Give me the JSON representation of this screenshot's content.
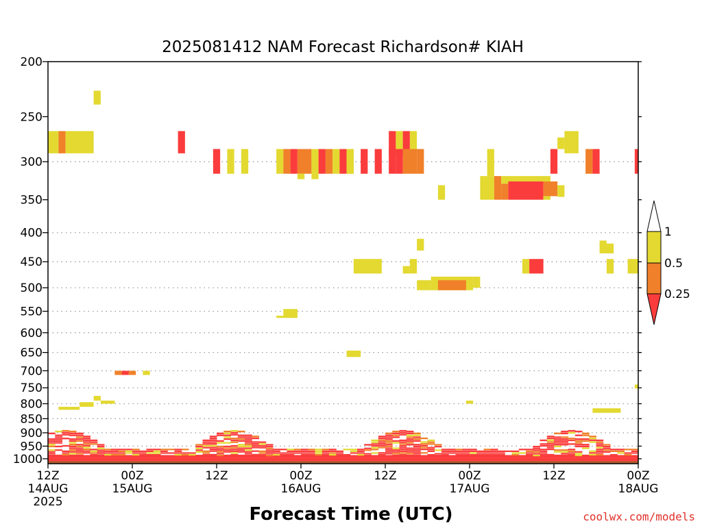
{
  "chart_data": {
    "type": "heatmap",
    "title": "2025081412 NAM Forecast Richardson# KIAH",
    "xlabel": "Forecast Time (UTC)",
    "ylabel": "",
    "x_ticks": [
      {
        "hour": 0,
        "line1": "12Z",
        "line2": "14AUG",
        "line3": "2025"
      },
      {
        "hour": 12,
        "line1": "00Z",
        "line2": "15AUG",
        "line3": ""
      },
      {
        "hour": 24,
        "line1": "12Z",
        "line2": "",
        "line3": ""
      },
      {
        "hour": 36,
        "line1": "00Z",
        "line2": "16AUG",
        "line3": ""
      },
      {
        "hour": 48,
        "line1": "12Z",
        "line2": "",
        "line3": ""
      },
      {
        "hour": 60,
        "line1": "00Z",
        "line2": "17AUG",
        "line3": ""
      },
      {
        "hour": 72,
        "line1": "12Z",
        "line2": "",
        "line3": ""
      },
      {
        "hour": 84,
        "line1": "00Z",
        "line2": "18AUG",
        "line3": ""
      }
    ],
    "xlim": [
      0,
      84
    ],
    "y_axis": "pressure (mb), log scale, inverted",
    "ylim": [
      1020,
      200
    ],
    "y_ticks": [
      200,
      250,
      300,
      350,
      400,
      450,
      500,
      550,
      600,
      650,
      700,
      750,
      800,
      850,
      900,
      950,
      1000
    ],
    "y_gridlines": [
      300,
      400,
      450,
      500,
      550,
      600,
      650,
      700,
      750,
      800,
      850,
      900,
      950,
      1000
    ],
    "grid": "dotted horizontal",
    "legend": {
      "placement": "right",
      "labels": [
        "1",
        "0.5",
        "0.25"
      ],
      "bins": [
        {
          "range": "> 1",
          "color": "#ffffff"
        },
        {
          "range": "0.5 - 1",
          "color": "#e3d931"
        },
        {
          "range": "0.25 - 0.5",
          "color": "#f0802a"
        },
        {
          "range": "< 0.25",
          "color": "#fb3c3c"
        }
      ]
    },
    "colors": {
      "low": "#fb3c3c",
      "mid": "#f0802a",
      "high": "#e3d931",
      "surface": "#a85a2c"
    },
    "cells": [
      {
        "t": 0,
        "t2": 1.5,
        "p1": 265,
        "p2": 290,
        "c": "high"
      },
      {
        "t": 1.5,
        "t2": 2.5,
        "p1": 265,
        "p2": 290,
        "c": "mid"
      },
      {
        "t": 2.5,
        "t2": 6.5,
        "p1": 265,
        "p2": 290,
        "c": "high"
      },
      {
        "t": 6.5,
        "t2": 7.5,
        "p1": 225,
        "p2": 238,
        "c": "high"
      },
      {
        "t": 18.5,
        "t2": 19.5,
        "p1": 265,
        "p2": 290,
        "c": "low"
      },
      {
        "t": 23.5,
        "t2": 24.5,
        "p1": 285,
        "p2": 315,
        "c": "low"
      },
      {
        "t": 25.5,
        "t2": 26.5,
        "p1": 285,
        "p2": 315,
        "c": "high"
      },
      {
        "t": 27.5,
        "t2": 28.5,
        "p1": 285,
        "p2": 315,
        "c": "high"
      },
      {
        "t": 32.5,
        "t2": 33.5,
        "p1": 285,
        "p2": 315,
        "c": "high"
      },
      {
        "t": 33.5,
        "t2": 34.5,
        "p1": 285,
        "p2": 315,
        "c": "mid"
      },
      {
        "t": 34.5,
        "t2": 35.5,
        "p1": 285,
        "p2": 315,
        "c": "low"
      },
      {
        "t": 35.5,
        "t2": 37.5,
        "p1": 285,
        "p2": 315,
        "c": "mid"
      },
      {
        "t": 37.5,
        "t2": 38.5,
        "p1": 285,
        "p2": 315,
        "c": "high"
      },
      {
        "t": 38.5,
        "t2": 39.5,
        "p1": 285,
        "p2": 315,
        "c": "low"
      },
      {
        "t": 39.5,
        "t2": 40.5,
        "p1": 285,
        "p2": 315,
        "c": "mid"
      },
      {
        "t": 40.5,
        "t2": 41.5,
        "p1": 285,
        "p2": 315,
        "c": "high"
      },
      {
        "t": 41.5,
        "t2": 42.5,
        "p1": 285,
        "p2": 315,
        "c": "low"
      },
      {
        "t": 42.5,
        "t2": 43.5,
        "p1": 285,
        "p2": 315,
        "c": "high"
      },
      {
        "t": 35.5,
        "t2": 36.5,
        "p1": 315,
        "p2": 322,
        "c": "high"
      },
      {
        "t": 37.5,
        "t2": 38.5,
        "p1": 315,
        "p2": 322,
        "c": "high"
      },
      {
        "t": 42.5,
        "t2": 43.5,
        "p1": 285,
        "p2": 315,
        "c": "high"
      },
      {
        "t": 44.5,
        "t2": 45.5,
        "p1": 285,
        "p2": 315,
        "c": "low"
      },
      {
        "t": 46.5,
        "t2": 47.5,
        "p1": 285,
        "p2": 315,
        "c": "low"
      },
      {
        "t": 48.5,
        "t2": 49.5,
        "p1": 265,
        "p2": 292,
        "c": "low"
      },
      {
        "t": 49.5,
        "t2": 50.5,
        "p1": 265,
        "p2": 292,
        "c": "high"
      },
      {
        "t": 50.5,
        "t2": 51.5,
        "p1": 265,
        "p2": 292,
        "c": "low"
      },
      {
        "t": 51.5,
        "t2": 52.5,
        "p1": 265,
        "p2": 292,
        "c": "high"
      },
      {
        "t": 48.5,
        "t2": 49.5,
        "p1": 285,
        "p2": 315,
        "c": "low"
      },
      {
        "t": 49.5,
        "t2": 50.5,
        "p1": 285,
        "p2": 315,
        "c": "low"
      },
      {
        "t": 50.5,
        "t2": 52.5,
        "p1": 285,
        "p2": 315,
        "c": "mid"
      },
      {
        "t": 52.5,
        "t2": 53.5,
        "p1": 285,
        "p2": 315,
        "c": "mid"
      },
      {
        "t": 55.5,
        "t2": 56.5,
        "p1": 330,
        "p2": 350,
        "c": "high"
      },
      {
        "t": 62.5,
        "t2": 63.5,
        "p1": 285,
        "p2": 318,
        "c": "high"
      },
      {
        "t": 61.5,
        "t2": 63.5,
        "p1": 318,
        "p2": 350,
        "c": "high"
      },
      {
        "t": 63.5,
        "t2": 64.5,
        "p1": 318,
        "p2": 350,
        "c": "mid"
      },
      {
        "t": 64.5,
        "t2": 71.5,
        "p1": 318,
        "p2": 328,
        "c": "high"
      },
      {
        "t": 64.5,
        "t2": 65.5,
        "p1": 328,
        "p2": 350,
        "c": "mid"
      },
      {
        "t": 65.5,
        "t2": 70.5,
        "p1": 325,
        "p2": 350,
        "c": "low"
      },
      {
        "t": 70.5,
        "t2": 72.5,
        "p1": 325,
        "p2": 345,
        "c": "mid"
      },
      {
        "t": 70.5,
        "t2": 71.5,
        "p1": 345,
        "p2": 350,
        "c": "high"
      },
      {
        "t": 72.5,
        "t2": 73.5,
        "p1": 330,
        "p2": 346,
        "c": "high"
      },
      {
        "t": 71.5,
        "t2": 72.5,
        "p1": 285,
        "p2": 315,
        "c": "low"
      },
      {
        "t": 73.5,
        "t2": 75.5,
        "p1": 265,
        "p2": 290,
        "c": "high"
      },
      {
        "t": 72.5,
        "t2": 73.5,
        "p1": 272,
        "p2": 285,
        "c": "high"
      },
      {
        "t": 76.5,
        "t2": 77.5,
        "p1": 285,
        "p2": 315,
        "c": "mid"
      },
      {
        "t": 77.5,
        "t2": 78.5,
        "p1": 285,
        "p2": 315,
        "c": "low"
      },
      {
        "t": 83.5,
        "t2": 84,
        "p1": 285,
        "p2": 315,
        "c": "low"
      },
      {
        "t": 52.5,
        "t2": 53.5,
        "p1": 410,
        "p2": 430,
        "c": "high"
      },
      {
        "t": 78.5,
        "t2": 80.5,
        "p1": 418,
        "p2": 435,
        "c": "high"
      },
      {
        "t": 78.5,
        "t2": 79.5,
        "p1": 413,
        "p2": 420,
        "c": "high"
      },
      {
        "t": 43.5,
        "t2": 47.5,
        "p1": 445,
        "p2": 472,
        "c": "high"
      },
      {
        "t": 50.5,
        "t2": 51.5,
        "p1": 458,
        "p2": 472,
        "c": "high"
      },
      {
        "t": 51.5,
        "t2": 52.5,
        "p1": 445,
        "p2": 472,
        "c": "high"
      },
      {
        "t": 67.5,
        "t2": 68.5,
        "p1": 445,
        "p2": 472,
        "c": "high"
      },
      {
        "t": 68.5,
        "t2": 70.5,
        "p1": 445,
        "p2": 472,
        "c": "low"
      },
      {
        "t": 79.5,
        "t2": 80.5,
        "p1": 445,
        "p2": 472,
        "c": "high"
      },
      {
        "t": 82.5,
        "t2": 84,
        "p1": 445,
        "p2": 472,
        "c": "high"
      },
      {
        "t": 52.5,
        "t2": 54.5,
        "p1": 485,
        "p2": 505,
        "c": "high"
      },
      {
        "t": 54.5,
        "t2": 60.5,
        "p1": 478,
        "p2": 505,
        "c": "high"
      },
      {
        "t": 60.5,
        "t2": 61.5,
        "p1": 478,
        "p2": 500,
        "c": "high"
      },
      {
        "t": 55.5,
        "t2": 59.5,
        "p1": 485,
        "p2": 505,
        "c": "mid"
      },
      {
        "t": 33.5,
        "t2": 35.5,
        "p1": 545,
        "p2": 565,
        "c": "high"
      },
      {
        "t": 32.5,
        "t2": 33.5,
        "p1": 560,
        "p2": 565,
        "c": "high"
      },
      {
        "t": 42.5,
        "t2": 44.5,
        "p1": 645,
        "p2": 662,
        "c": "high"
      },
      {
        "t": 9.5,
        "t2": 10.5,
        "p1": 700,
        "p2": 712,
        "c": "mid"
      },
      {
        "t": 10.5,
        "t2": 11.5,
        "p1": 700,
        "p2": 712,
        "c": "low"
      },
      {
        "t": 11.5,
        "t2": 12.5,
        "p1": 700,
        "p2": 712,
        "c": "mid"
      },
      {
        "t": 13.5,
        "t2": 14.5,
        "p1": 700,
        "p2": 712,
        "c": "high"
      },
      {
        "t": 83.5,
        "t2": 84,
        "p1": 740,
        "p2": 752,
        "c": "high"
      },
      {
        "t": 6.5,
        "t2": 7.5,
        "p1": 775,
        "p2": 790,
        "c": "high"
      },
      {
        "t": 7.5,
        "t2": 9.5,
        "p1": 790,
        "p2": 800,
        "c": "high"
      },
      {
        "t": 1.5,
        "t2": 4.5,
        "p1": 810,
        "p2": 820,
        "c": "high"
      },
      {
        "t": 4.5,
        "t2": 6.5,
        "p1": 795,
        "p2": 810,
        "c": "high"
      },
      {
        "t": 77.5,
        "t2": 81.5,
        "p1": 815,
        "p2": 830,
        "c": "high"
      },
      {
        "t": 59.5,
        "t2": 60.5,
        "p1": 790,
        "p2": 800,
        "c": "high"
      },
      {
        "t": 0,
        "t2": 84,
        "p1": 995,
        "p2": 1010,
        "c": "low"
      },
      {
        "t": 0,
        "t2": 84,
        "p1": 985,
        "p2": 995,
        "c": "low"
      }
    ]
  },
  "credit": "coolwx.com/models"
}
